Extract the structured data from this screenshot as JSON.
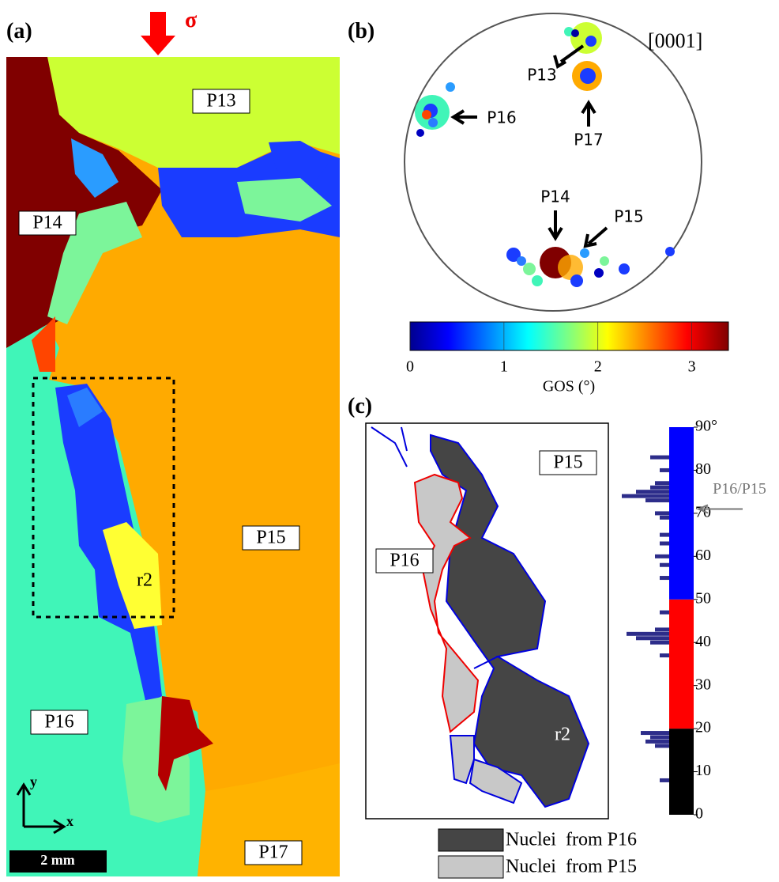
{
  "panel_a": {
    "label": "(a)",
    "stress": "σ",
    "grains": [
      "P13",
      "P14",
      "P15",
      "P16",
      "P17"
    ],
    "region": "r2",
    "axis_y": "y",
    "axis_x": "x",
    "scale_bar": "2 mm"
  },
  "panel_b": {
    "label": "(b)",
    "direction": "[0001]",
    "poles": [
      "P13",
      "P16",
      "P17",
      "P14",
      "P15"
    ],
    "colorbar": {
      "label": "GOS (°)",
      "lim": [
        0,
        3.39
      ],
      "ticks": [
        0,
        1,
        2,
        3
      ]
    }
  },
  "panel_c": {
    "label": "(c)",
    "grains": [
      "P15",
      "P16"
    ],
    "region": "r2",
    "legend": [
      {
        "name": "Nuclei  from P16",
        "color": "#454545"
      },
      {
        "name": "Nuclei  from P15",
        "color": "#c8c8c8"
      }
    ],
    "histogram": {
      "ylim": [
        0,
        90
      ],
      "yticks": [
        0,
        10,
        20,
        30,
        40,
        50,
        60,
        70,
        80,
        {
          "value": 90,
          "label": "90°"
        }
      ],
      "bands": [
        {
          "from": 0,
          "to": 20,
          "color": "#000000"
        },
        {
          "from": 20,
          "to": 50,
          "color": "#ff0000"
        },
        {
          "from": 50,
          "to": 90,
          "color": "#0000ff"
        }
      ],
      "angles": [
        8,
        16,
        17,
        18,
        19,
        37,
        40,
        41,
        42,
        43,
        47,
        55,
        58,
        60,
        63,
        65,
        69,
        70,
        73,
        74,
        75,
        76,
        77,
        80,
        83
      ],
      "counts": [
        2,
        3,
        5,
        4,
        6,
        2,
        4,
        7,
        9,
        3,
        2,
        2,
        2,
        3,
        2,
        2,
        2,
        3,
        5,
        10,
        7,
        4,
        3,
        2,
        4
      ],
      "bar_color": "#2d2d8a",
      "arrow_label": "P16/P15",
      "arrow_value": 71
    }
  }
}
